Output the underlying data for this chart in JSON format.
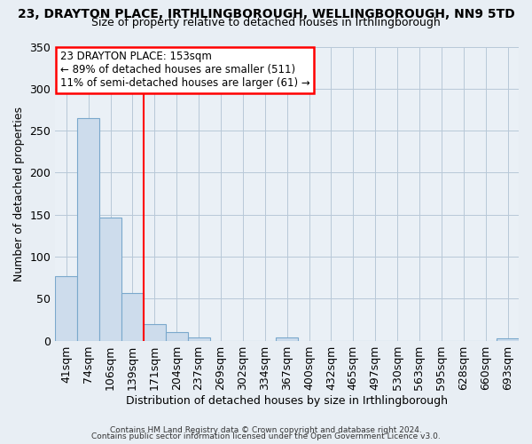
{
  "title1": "23, DRAYTON PLACE, IRTHLINGBOROUGH, WELLINGBOROUGH, NN9 5TD",
  "title2": "Size of property relative to detached houses in Irthlingborough",
  "xlabel": "Distribution of detached houses by size in Irthlingborough",
  "ylabel": "Number of detached properties",
  "bar_labels": [
    "41sqm",
    "74sqm",
    "106sqm",
    "139sqm",
    "171sqm",
    "204sqm",
    "237sqm",
    "269sqm",
    "302sqm",
    "334sqm",
    "367sqm",
    "400sqm",
    "432sqm",
    "465sqm",
    "497sqm",
    "530sqm",
    "563sqm",
    "595sqm",
    "628sqm",
    "660sqm",
    "693sqm"
  ],
  "bar_values": [
    77,
    265,
    146,
    57,
    20,
    10,
    4,
    0,
    0,
    0,
    4,
    0,
    0,
    0,
    0,
    0,
    0,
    0,
    0,
    0,
    3
  ],
  "bar_color": "#cddcec",
  "bar_edge_color": "#7aa8cc",
  "red_line_x": 3.5,
  "ylim": [
    0,
    350
  ],
  "yticks": [
    0,
    50,
    100,
    150,
    200,
    250,
    300,
    350
  ],
  "annotation_line1": "23 DRAYTON PLACE: 153sqm",
  "annotation_line2": "← 89% of detached houses are smaller (511)",
  "annotation_line3": "11% of semi-detached houses are larger (61) →",
  "footer1": "Contains HM Land Registry data © Crown copyright and database right 2024.",
  "footer2": "Contains public sector information licensed under the Open Government Licence v3.0.",
  "bg_color": "#e8eef4",
  "plot_bg_color": "#eaf0f6",
  "grid_color": "#b8c8d8"
}
